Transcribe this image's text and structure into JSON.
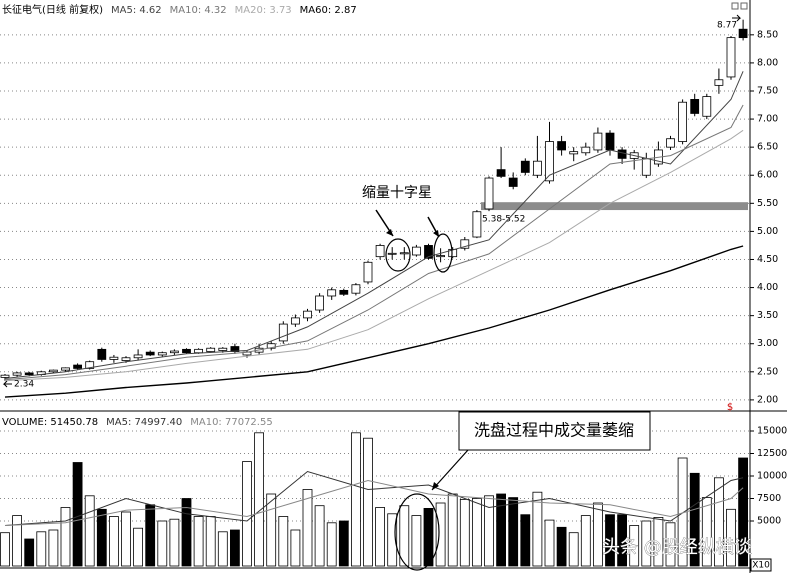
{
  "chart_data": [
    {
      "type": "candlestick",
      "title": "长征电气(日线 前复权)",
      "open": [
        2.4,
        2.44,
        2.48,
        2.45,
        2.5,
        2.53,
        2.62,
        2.56,
        2.9,
        2.72,
        2.7,
        2.75,
        2.85,
        2.8,
        2.84,
        2.9,
        2.84,
        2.86,
        2.88,
        2.95,
        2.8,
        2.85,
        2.92,
        3.05,
        3.35,
        3.46,
        3.6,
        3.85,
        3.95,
        3.9,
        4.1,
        4.55,
        4.6,
        4.6,
        4.58,
        4.75,
        4.55,
        4.55,
        4.7,
        4.9,
        5.4,
        6.1,
        5.95,
        6.25,
        6.0,
        5.9,
        6.6,
        6.38,
        6.4,
        6.45,
        6.75,
        6.45,
        6.3,
        6.0,
        6.2,
        6.5,
        6.6,
        7.35,
        7.05,
        7.6,
        7.75,
        8.6
      ],
      "high": [
        2.46,
        2.5,
        2.5,
        2.52,
        2.54,
        2.58,
        2.65,
        2.7,
        2.93,
        2.8,
        2.78,
        2.9,
        2.88,
        2.86,
        2.9,
        2.92,
        2.92,
        2.94,
        2.94,
        3.0,
        2.88,
        3.0,
        3.05,
        3.4,
        3.52,
        3.62,
        3.9,
        4.0,
        3.98,
        4.08,
        4.48,
        4.78,
        4.72,
        4.72,
        4.76,
        4.78,
        4.7,
        4.72,
        4.9,
        5.38,
        5.98,
        6.5,
        6.05,
        6.3,
        6.7,
        6.95,
        6.7,
        6.5,
        6.58,
        6.85,
        6.8,
        6.5,
        6.45,
        6.4,
        6.6,
        6.7,
        7.35,
        7.45,
        7.45,
        7.9,
        8.48,
        8.77
      ],
      "low": [
        2.34,
        2.41,
        2.42,
        2.43,
        2.47,
        2.5,
        2.54,
        2.54,
        2.68,
        2.66,
        2.66,
        2.7,
        2.78,
        2.77,
        2.8,
        2.82,
        2.82,
        2.84,
        2.84,
        2.82,
        2.75,
        2.8,
        2.88,
        3.0,
        3.3,
        3.4,
        3.55,
        3.78,
        3.85,
        3.86,
        4.06,
        4.5,
        4.5,
        4.5,
        4.55,
        4.5,
        4.45,
        4.52,
        4.66,
        4.88,
        5.36,
        5.95,
        5.75,
        6.0,
        5.95,
        5.85,
        6.35,
        6.25,
        6.35,
        6.4,
        6.35,
        6.2,
        6.1,
        5.95,
        6.15,
        6.45,
        6.55,
        7.05,
        7.0,
        7.45,
        7.7,
        8.4
      ],
      "close": [
        2.44,
        2.48,
        2.45,
        2.5,
        2.53,
        2.57,
        2.56,
        2.68,
        2.72,
        2.76,
        2.75,
        2.8,
        2.8,
        2.84,
        2.87,
        2.84,
        2.9,
        2.92,
        2.92,
        2.86,
        2.85,
        2.92,
        3.0,
        3.35,
        3.46,
        3.58,
        3.85,
        3.96,
        3.88,
        4.05,
        4.45,
        4.75,
        4.61,
        4.62,
        4.72,
        4.52,
        4.57,
        4.68,
        4.85,
        5.35,
        5.95,
        5.98,
        5.8,
        6.05,
        6.25,
        6.6,
        6.45,
        6.42,
        6.5,
        6.75,
        6.45,
        6.3,
        6.4,
        6.3,
        6.45,
        6.65,
        7.3,
        7.1,
        7.4,
        7.7,
        8.45,
        8.45
      ],
      "series": [
        {
          "name": "MA5: 4.62",
          "color": "#444444",
          "x": [
            0,
            5,
            10,
            15,
            20,
            25,
            30,
            35,
            40,
            45,
            50,
            55,
            60,
            61
          ],
          "values": [
            2.38,
            2.5,
            2.68,
            2.82,
            2.88,
            3.3,
            3.9,
            4.55,
            4.85,
            6.0,
            6.45,
            6.2,
            7.35,
            7.85
          ]
        },
        {
          "name": "MA10: 4.32",
          "color": "#777777",
          "x": [
            0,
            5,
            10,
            15,
            20,
            25,
            30,
            35,
            40,
            45,
            50,
            55,
            60,
            61
          ],
          "values": [
            2.36,
            2.45,
            2.6,
            2.76,
            2.85,
            3.05,
            3.6,
            4.25,
            4.6,
            5.4,
            6.2,
            6.35,
            6.85,
            7.25
          ]
        },
        {
          "name": "MA20: 3.73",
          "color": "#aaaaaa",
          "x": [
            0,
            5,
            10,
            15,
            20,
            25,
            30,
            35,
            40,
            45,
            50,
            55,
            60,
            61
          ],
          "values": [
            2.34,
            2.4,
            2.5,
            2.65,
            2.78,
            2.9,
            3.25,
            3.8,
            4.3,
            4.8,
            5.5,
            6.05,
            6.65,
            6.8
          ]
        },
        {
          "name": "MA60: 2.87",
          "color": "#000000",
          "x": [
            0,
            5,
            10,
            15,
            20,
            25,
            30,
            35,
            40,
            45,
            50,
            55,
            60,
            61
          ],
          "values": [
            2.05,
            2.12,
            2.22,
            2.3,
            2.4,
            2.5,
            2.75,
            3.0,
            3.28,
            3.6,
            3.96,
            4.3,
            4.68,
            4.74
          ]
        }
      ],
      "ylim": [
        1.82,
        9.12
      ],
      "yticks": [
        {
          "value": 2,
          "label": "2.00"
        },
        {
          "value": 2.5,
          "label": "2.50"
        },
        {
          "value": 3,
          "label": "3.00"
        },
        {
          "value": 3.5,
          "label": "3.50"
        },
        {
          "value": 4,
          "label": "4.00"
        },
        {
          "value": 4.5,
          "label": "4.50"
        },
        {
          "value": 5,
          "label": "5.00"
        },
        {
          "value": 5.5,
          "label": "5.50"
        },
        {
          "value": 6,
          "label": "6.00"
        },
        {
          "value": 6.5,
          "label": "6.50"
        },
        {
          "value": 7,
          "label": "7.00"
        },
        {
          "value": 7.5,
          "label": "7.50"
        },
        {
          "value": 8,
          "label": "8.00"
        },
        {
          "value": 8.5,
          "label": "8.50"
        }
      ],
      "grid": true,
      "high_label": 8.77,
      "low_label": 2.34,
      "band": {
        "low": 5.38,
        "high": 5.52,
        "label": "5.38-5.52",
        "color": "#8c8c8c"
      },
      "annotation": "缩量十字星",
      "signal": "$"
    },
    {
      "type": "bar",
      "title": "VOLUME: 51450.78",
      "values": [
        3700,
        5600,
        3000,
        3800,
        4000,
        6500,
        11500,
        7800,
        6300,
        5500,
        6000,
        4200,
        6800,
        5000,
        5200,
        7500,
        5500,
        5500,
        3800,
        4000,
        11600,
        14800,
        8000,
        5500,
        4000,
        8500,
        6700,
        4800,
        5000,
        14800,
        14200,
        6500,
        5800,
        6700,
        5600,
        6400,
        7000,
        8000,
        7400,
        7500,
        7800,
        8000,
        7600,
        5700,
        8200,
        5100,
        4300,
        3700,
        5600,
        7000,
        5700,
        5700,
        4500,
        5000,
        5400,
        4800,
        12000,
        10300,
        7600,
        9800,
        6300,
        12000
      ],
      "series": [
        {
          "name": "MA5: 74997.40",
          "color": "#333333",
          "x": [
            0,
            5,
            10,
            15,
            20,
            25,
            30,
            35,
            40,
            45,
            50,
            55,
            60,
            61
          ],
          "values": [
            4500,
            5000,
            7500,
            5800,
            5000,
            10500,
            8500,
            9000,
            6500,
            7500,
            6000,
            5000,
            9500,
            9800
          ]
        },
        {
          "name": "MA10: 77072.55",
          "color": "#888888",
          "x": [
            0,
            5,
            10,
            15,
            20,
            25,
            30,
            35,
            40,
            45,
            50,
            55,
            60,
            61
          ],
          "values": [
            4500,
            4800,
            6200,
            6500,
            5500,
            7500,
            9500,
            8000,
            7500,
            7000,
            6800,
            5500,
            7500,
            8700
          ]
        }
      ],
      "ylim": [
        0,
        17000
      ],
      "yticks": [
        5000,
        7500,
        10000,
        12500,
        15000
      ],
      "grid": true,
      "annotation": "洗盘过程中成交量萎缩",
      "watermark": "头条 @股经纵横谈",
      "zoom": "X10"
    }
  ]
}
